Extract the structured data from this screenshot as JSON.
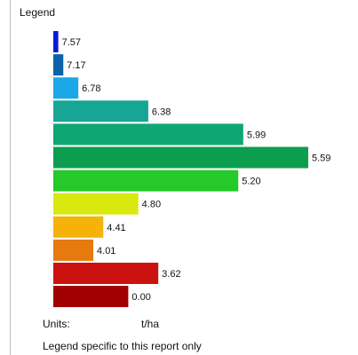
{
  "legend": {
    "title": "Legend",
    "units_label": "Units:",
    "units_value": "t/ha",
    "footnote": "Legend specific to this report only"
  },
  "chart_data": {
    "type": "bar",
    "orientation": "horizontal",
    "grid": false,
    "categories": [
      "7.57",
      "7.17",
      "6.78",
      "6.38",
      "5.99",
      "5.59",
      "5.20",
      "4.80",
      "4.41",
      "4.01",
      "3.62",
      "0.00"
    ],
    "values": [
      1,
      2,
      5,
      19,
      38,
      51,
      37,
      17,
      10,
      8,
      21,
      15
    ],
    "colors": [
      "#0a1bd6",
      "#0d62a8",
      "#1aa9e6",
      "#17a596",
      "#10a673",
      "#0c9e4e",
      "#25c92a",
      "#d9e80f",
      "#f5b30a",
      "#e57a0e",
      "#cc1111",
      "#a00000"
    ]
  }
}
